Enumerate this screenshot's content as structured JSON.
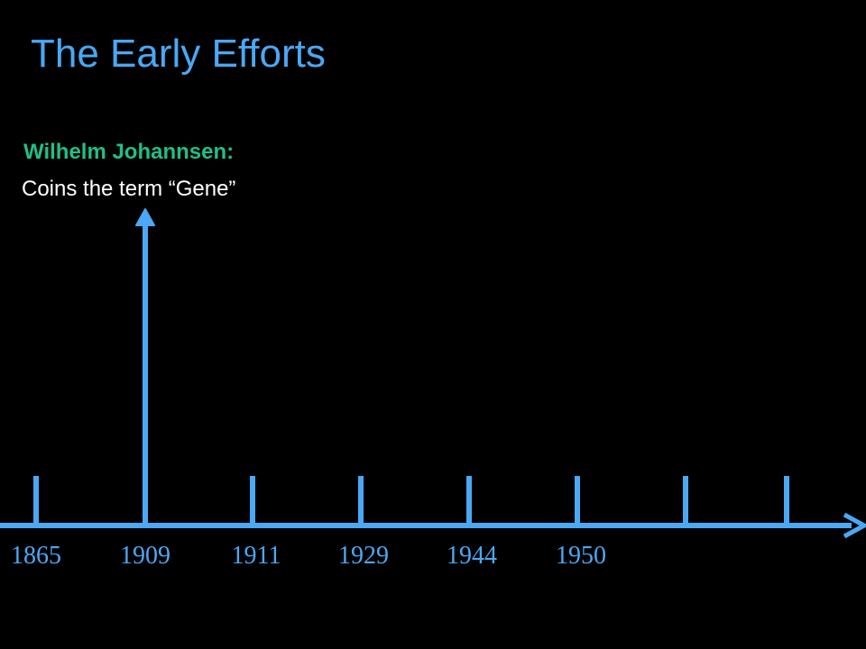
{
  "title": "The Early Efforts",
  "event": {
    "name": "Wilhelm Johannsen:",
    "description": "Coins the term “Gene”"
  },
  "timeline": {
    "years": [
      "1865",
      "1909",
      "1911",
      "1929",
      "1944",
      "1950"
    ],
    "highlighted_year": "1909",
    "color": "#4aa8f4"
  }
}
